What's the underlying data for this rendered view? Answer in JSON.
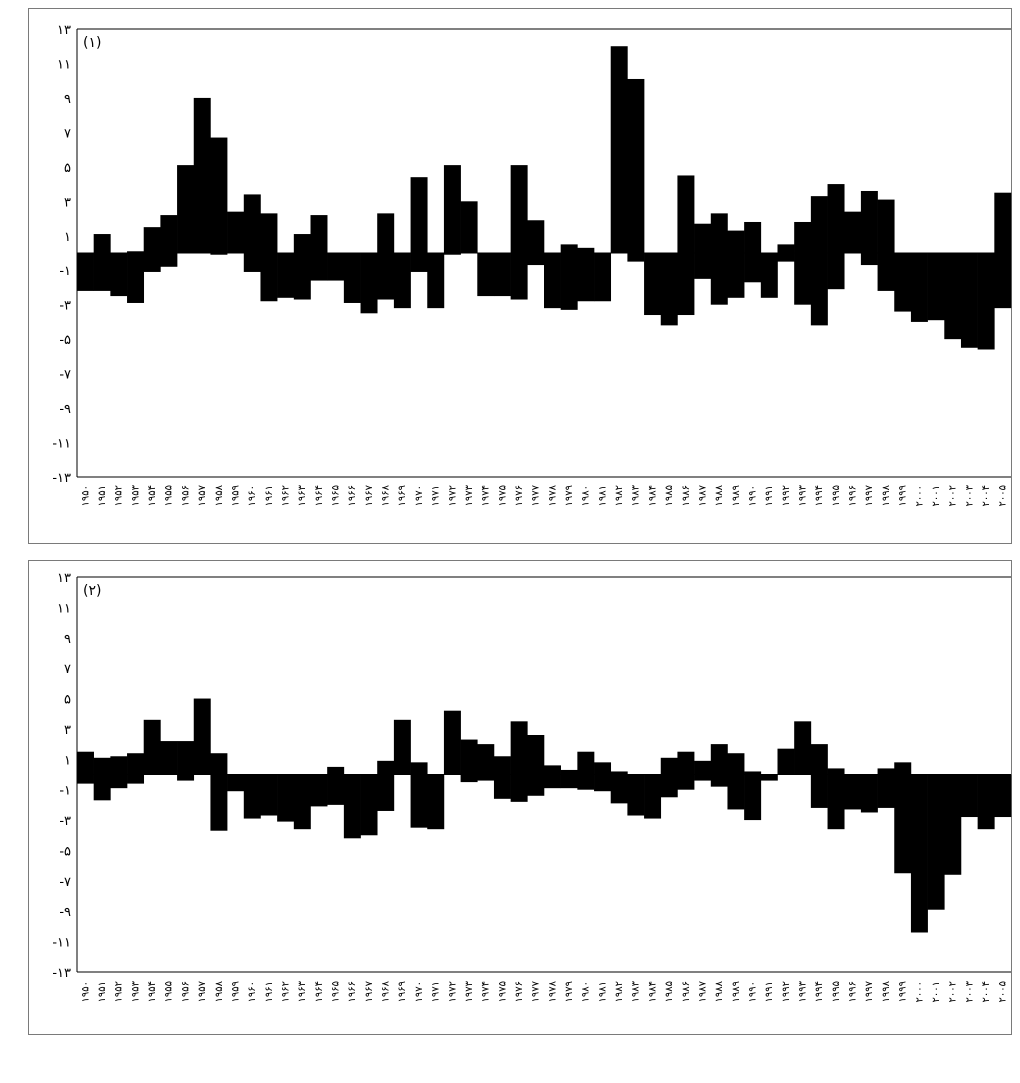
{
  "chart_data": [
    {
      "type": "bar",
      "panel_label": "(۱)",
      "ylim": [
        -13,
        13
      ],
      "y_ticks": [
        "۱۳",
        "۱۱",
        "۹",
        "۷",
        "۵",
        "۳",
        "۱",
        "-۱",
        "-۳",
        "-۵",
        "-۷",
        "-۹",
        "-۱۱",
        "-۱۳"
      ],
      "categories": [
        "۱۹۵۰",
        "۱۹۵۱",
        "۱۹۵۲",
        "۱۹۵۳",
        "۱۹۵۴",
        "۱۹۵۵",
        "۱۹۵۶",
        "۱۹۵۷",
        "۱۹۵۸",
        "۱۹۵۹",
        "۱۹۶۰",
        "۱۹۶۱",
        "۱۹۶۲",
        "۱۹۶۳",
        "۱۹۶۴",
        "۱۹۶۵",
        "۱۹۶۶",
        "۱۹۶۷",
        "۱۹۶۸",
        "۱۹۶۹",
        "۱۹۷۰",
        "۱۹۷۱",
        "۱۹۷۲",
        "۱۹۷۳",
        "۱۹۷۴",
        "۱۹۷۵",
        "۱۹۷۶",
        "۱۹۷۷",
        "۱۹۷۸",
        "۱۹۷۹",
        "۱۹۸۰",
        "۱۹۸۱",
        "۱۹۸۲",
        "۱۹۸۳",
        "۱۹۸۴",
        "۱۹۸۵",
        "۱۹۸۶",
        "۱۹۸۷",
        "۱۹۸۸",
        "۱۹۸۹",
        "۱۹۹۰",
        "۱۹۹۱",
        "۱۹۹۲",
        "۱۹۹۳",
        "۱۹۹۴",
        "۱۹۹۵",
        "۱۹۹۶",
        "۱۹۹۷",
        "۱۹۹۸",
        "۱۹۹۹",
        "۲۰۰۰",
        "۲۰۰۱",
        "۲۰۰۲",
        "۲۰۰۳",
        "۲۰۰۴",
        "۲۰۰۵"
      ],
      "x_tick_labels": [
        "۱۹۵۰",
        "۱۹۵۱",
        "۱۹۵۲",
        "۱۹۵۳",
        "۱۹۵۴",
        "۱۹۵۵",
        "۱۹۵۶",
        "۱۹۵۷",
        "۱۹۵۸",
        "۱۹۵۹",
        "۱۹۶۰",
        "۱۹۶۱",
        "۱۹۶۲",
        "۱۹۶۳",
        "۱۹۶۴",
        "۱۹۶۵",
        "۱۹۶۶",
        "۱۹۶۷",
        "۱۹۶۸",
        "۱۹۶۹",
        "۱۹۷۰",
        "۱۹۷۱",
        "۱۹۷۲",
        "۱۹۷۳",
        "۱۹۷۴",
        "۱۹۷۵",
        "۱۹۷۶",
        "۱۹۷۷",
        "۱۹۷۸",
        "۱۹۷۹",
        "۱۹۸۰",
        "۱۹۸۱",
        "۱۹۸۲",
        "۱۹۸۳",
        "۱۹۸۴",
        "۱۹۸۵",
        "۱۹۸۶",
        "۱۹۸۷",
        "۱۹۸۸",
        "۱۹۸۹",
        "۱۹۹۰",
        "۱۹۹۱",
        "۱۹۹۲",
        "۱۹۹۳",
        "۱۹۹۴",
        "۱۹۹۵",
        "۱۹۹۶",
        "۱۹۹۷",
        "۱۹۹۸",
        "۱۹۹۹",
        "۲۰۰۰",
        "۲۰۰۱",
        "۲۰۰۲",
        "۲۰۰۳",
        "۲۰۰۴",
        "۲۰۰۵"
      ],
      "series": [
        {
          "values": [
            0,
            1.1,
            0,
            0.1,
            1.5,
            2.2,
            5.1,
            9.0,
            6.7,
            2.4,
            3.4,
            2.3,
            0,
            1.1,
            2.2,
            0,
            0,
            0,
            2.3,
            0,
            4.4,
            0,
            5.1,
            3.0,
            0,
            0,
            5.1,
            1.9,
            0,
            0.5,
            0.3,
            0,
            12.0,
            10.1,
            0,
            0,
            4.5,
            1.7,
            2.3,
            1.3,
            1.8,
            0,
            0.5,
            1.8,
            3.3,
            4.0,
            2.4,
            3.6,
            3.1,
            0,
            0,
            0,
            0,
            0,
            0,
            3.5
          ]
        },
        {
          "values": [
            -2.2,
            -2.2,
            -2.5,
            -2.9,
            -1.1,
            -0.8,
            0,
            0,
            -0.1,
            0,
            -1.1,
            -2.8,
            -2.6,
            -2.7,
            -1.6,
            -1.6,
            -2.9,
            -3.5,
            -2.7,
            -3.2,
            -1.1,
            -3.2,
            -0.1,
            0,
            -2.5,
            -2.5,
            -2.7,
            -0.7,
            -3.2,
            -3.3,
            -2.8,
            -2.8,
            0,
            -0.5,
            -3.6,
            -4.2,
            -3.6,
            -1.5,
            -3.0,
            -2.6,
            -1.7,
            -2.6,
            -0.5,
            -3.0,
            -4.2,
            -2.1,
            0,
            -0.7,
            -2.2,
            -3.4,
            -4.0,
            -3.9,
            -5.0,
            -5.5,
            -5.6,
            -3.2
          ]
        }
      ]
    },
    {
      "type": "bar",
      "panel_label": "(۲)",
      "ylim": [
        -13,
        13
      ],
      "y_ticks": [
        "۱۳",
        "۱۱",
        "۹",
        "۷",
        "۵",
        "۳",
        "۱",
        "-۱",
        "-۳",
        "-۵",
        "-۷",
        "-۹",
        "-۱۱",
        "-۱۳"
      ],
      "categories": [
        "۱۹۵۰",
        "۱۹۵۱",
        "۱۹۵۲",
        "۱۹۵۳",
        "۱۹۵۴",
        "۱۹۵۵",
        "۱۹۵۶",
        "۱۹۵۷",
        "۱۹۵۸",
        "۱۹۵۹",
        "۱۹۶۰",
        "۱۹۶۱",
        "۱۹۶۲",
        "۱۹۶۳",
        "۱۹۶۴",
        "۱۹۶۵",
        "۱۹۶۶",
        "۱۹۶۷",
        "۱۹۶۸",
        "۱۹۶۹",
        "۱۹۷۰",
        "۱۹۷۱",
        "۱۹۷۲",
        "۱۹۷۳",
        "۱۹۷۴",
        "۱۹۷۵",
        "۱۹۷۶",
        "۱۹۷۷",
        "۱۹۷۸",
        "۱۹۷۹",
        "۱۹۸۰",
        "۱۹۸۱",
        "۱۹۸۲",
        "۱۹۸۳",
        "۱۹۸۴",
        "۱۹۸۵",
        "۱۹۸۶",
        "۱۹۸۷",
        "۱۹۸۸",
        "۱۹۸۹",
        "۱۹۹۰",
        "۱۹۹۱",
        "۱۹۹۲",
        "۱۹۹۳",
        "۱۹۹۴",
        "۱۹۹۵",
        "۱۹۹۶",
        "۱۹۹۷",
        "۱۹۹۸",
        "۱۹۹۹",
        "۲۰۰۰",
        "۲۰۰۱",
        "۲۰۰۲",
        "۲۰۰۳",
        "۲۰۰۴",
        "۲۰۰۵"
      ],
      "x_tick_labels": [
        "۱۹۵۰",
        "۱۹۵۱",
        "۱۹۵۲",
        "۱۹۵۳",
        "۱۹۵۴",
        "۱۹۵۵",
        "۱۹۵۶",
        "۱۹۵۷",
        "۱۹۵۸",
        "۱۹۵۹",
        "۱۹۶۰",
        "۱۹۶۱",
        "۱۹۶۲",
        "۱۹۶۳",
        "۱۹۶۴",
        "۱۹۶۵",
        "۱۹۶۶",
        "۱۹۶۷",
        "۱۹۶۸",
        "۱۹۶۹",
        "۱۹۷۰",
        "۱۹۷۱",
        "۱۹۷۲",
        "۱۹۷۳",
        "۱۹۷۴",
        "۱۹۷۵",
        "۱۹۷۶",
        "۱۹۷۷",
        "۱۹۷۸",
        "۱۹۷۹",
        "۱۹۸۰",
        "۱۹۸۱",
        "۱۹۸۲",
        "۱۹۸۳",
        "۱۹۸۴",
        "۱۹۸۵",
        "۱۹۸۶",
        "۱۹۸۷",
        "۱۹۸۸",
        "۱۹۸۹",
        "۱۹۹۰",
        "۱۹۹۱",
        "۱۹۹۲",
        "۱۹۹۳",
        "۱۹۹۴",
        "۱۹۹۵",
        "۱۹۹۶",
        "۱۹۹۷",
        "۱۹۹۸",
        "۱۹۹۹",
        "۲۰۰۰",
        "۲۰۰۱",
        "۲۰۰۲",
        "۲۰۰۳",
        "۲۰۰۴",
        "۲۰۰۵"
      ],
      "series": [
        {
          "values": [
            1.5,
            1.1,
            1.2,
            1.4,
            3.6,
            2.2,
            2.2,
            5.0,
            1.4,
            0,
            0,
            0,
            0,
            0,
            0,
            0.5,
            0,
            0,
            0.9,
            3.6,
            0.8,
            0,
            4.2,
            2.3,
            2.0,
            1.2,
            3.5,
            2.6,
            0.6,
            0.3,
            1.5,
            0.8,
            0.2,
            0,
            0,
            1.1,
            1.5,
            0.9,
            2.0,
            1.4,
            0.2,
            0,
            1.7,
            3.5,
            2.0,
            0.4,
            0,
            0,
            0.4,
            0.8,
            0,
            0,
            0,
            0,
            0,
            0
          ]
        },
        {
          "values": [
            -0.6,
            -1.7,
            -0.9,
            -0.6,
            0,
            0,
            -0.4,
            0,
            -3.7,
            -1.1,
            -2.9,
            -2.7,
            -3.1,
            -3.6,
            -2.1,
            -2.0,
            -4.2,
            -4.0,
            -2.4,
            0,
            -3.5,
            -3.6,
            0,
            -0.5,
            -0.4,
            -1.6,
            -1.8,
            -1.4,
            -0.9,
            -0.9,
            -1.0,
            -1.1,
            -1.9,
            -2.7,
            -2.9,
            -1.5,
            -1.0,
            -0.4,
            -0.8,
            -2.3,
            -3.0,
            -0.4,
            0,
            0,
            -2.2,
            -3.6,
            -2.3,
            -2.5,
            -2.2,
            -6.5,
            -10.4,
            -8.9,
            -6.6,
            -2.8,
            -3.6,
            -2.8
          ]
        }
      ]
    }
  ]
}
